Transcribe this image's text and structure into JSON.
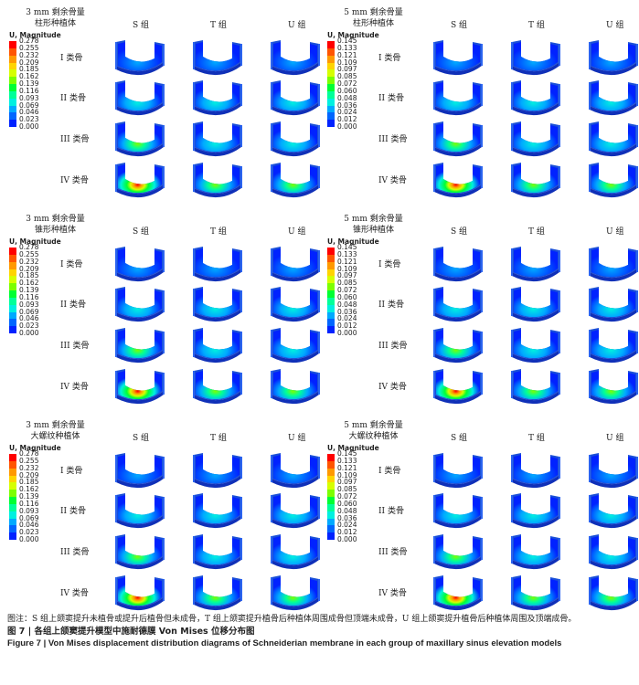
{
  "col_headers": [
    "S 组",
    "T 组",
    "U 组"
  ],
  "row_labels": [
    "I 类骨",
    "II 类骨",
    "III 类骨",
    "IV 类骨"
  ],
  "legend_title": "U, Magnitude",
  "legend_3mm": [
    "0.278",
    "0.255",
    "0.232",
    "0.209",
    "0.185",
    "0.162",
    "0.139",
    "0.116",
    "0.093",
    "0.069",
    "0.046",
    "0.023",
    "0.000"
  ],
  "legend_5mm": [
    "0.145",
    "0.133",
    "0.121",
    "0.109",
    "0.097",
    "0.085",
    "0.072",
    "0.060",
    "0.048",
    "0.036",
    "0.024",
    "0.012",
    "0.000"
  ],
  "colors": [
    "#ff0000",
    "#ff5500",
    "#ff9900",
    "#ffd400",
    "#d6ff00",
    "#7cff00",
    "#00ff33",
    "#00ff99",
    "#00f0e0",
    "#00aaff",
    "#0066ff",
    "#0022ff",
    "#0000cc"
  ],
  "panels": [
    {
      "title": "3 mm 剩余骨量\n柱形种植体",
      "scale": "3mm"
    },
    {
      "title": "5 mm 剩余骨量\n柱形种植体",
      "scale": "5mm"
    },
    {
      "title": "3 mm 剩余骨量\n锥形种植体",
      "scale": "3mm"
    },
    {
      "title": "5 mm 剩余骨量\n锥形种植体",
      "scale": "5mm"
    },
    {
      "title": "3 mm 剩余骨量\n大螺纹种植体",
      "scale": "3mm"
    },
    {
      "title": "5 mm 剩余骨量\n大螺纹种植体",
      "scale": "5mm"
    }
  ],
  "caption": {
    "note": "图注：S 组上颌窦提升未植骨或提升后植骨但未成骨，T 组上颌窦提升植骨后种植体周围成骨但顶端未成骨，U 组上颌窦提升植骨后种植体周围及顶端成骨。",
    "title_cn": "图 7  |  各组上颌窦提升模型中施耐德膜 Von Mises 位移分布图",
    "title_en": "Figure 7  |  Von Mises displacement distribution diagrams of Schneiderian membrane in each group of maxillary sinus elevation models"
  }
}
